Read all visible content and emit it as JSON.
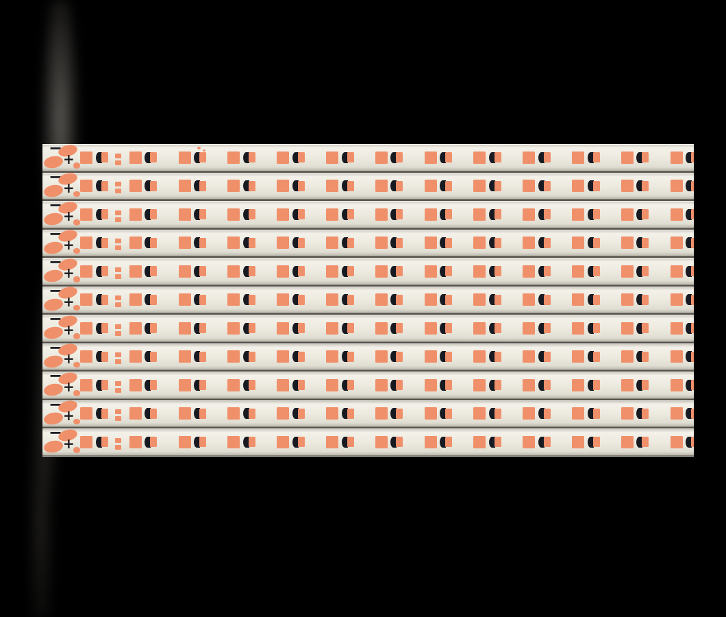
{
  "scene": {
    "description": "Photograph of eleven white aluminum LED strip PCBs laid side by side on a black background, each strip with orange solder pads, dark crescent LED lens marks, and silkscreen polarity symbols at the left end",
    "strip_count": 11,
    "footprints_per_strip": 13,
    "polarity": {
      "minus": "−",
      "plus": "+"
    }
  },
  "colors": {
    "background": "#000000",
    "pcb-light": "#f3f1e9",
    "pcb-mid": "#edeae0",
    "pcb-dark": "#e0ddd2",
    "pad-orange": "#f0906a",
    "mark-dark": "#181a22",
    "separator": "#55504a",
    "reflection": "#8e897f"
  }
}
